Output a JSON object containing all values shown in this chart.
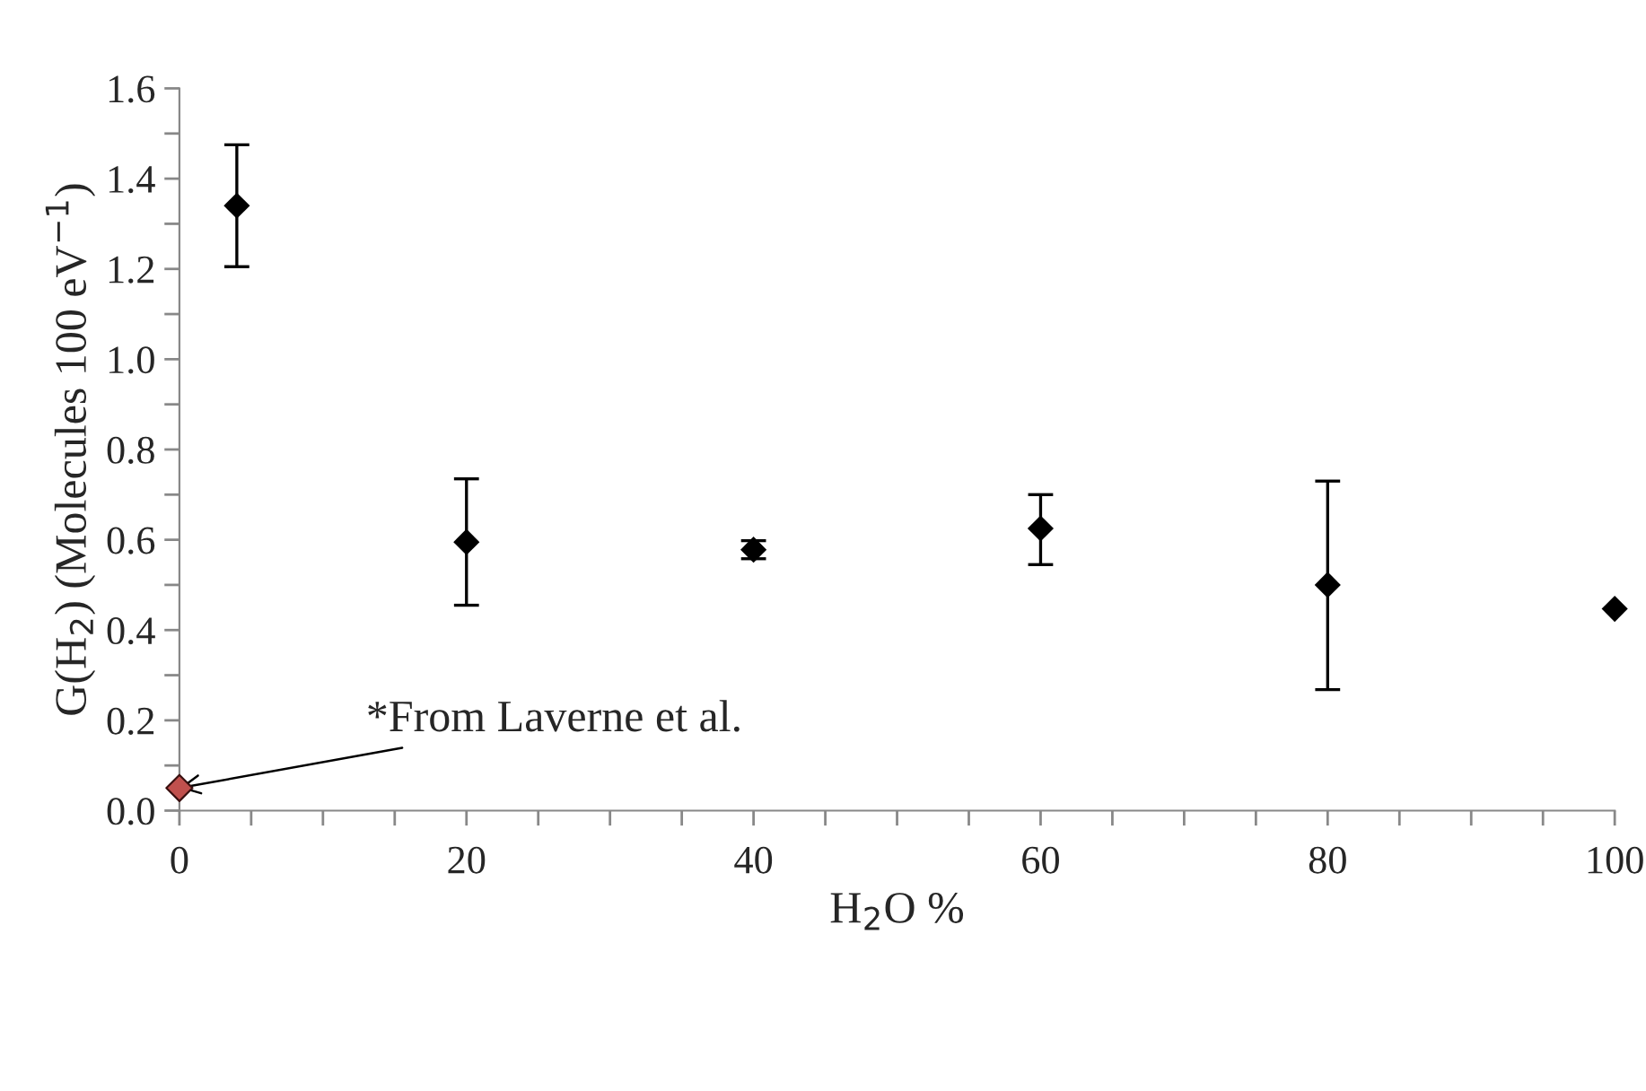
{
  "chart_data": {
    "type": "scatter",
    "xlabel": "H$_{2}$O %",
    "ylabel": "G(H$_{2}$) (Molecules 100 eV$^{−1}$)",
    "series": [
      {
        "color": "#000000",
        "x": [
          4,
          20,
          40,
          60,
          80,
          100
        ],
        "values": [
          1.34,
          0.595,
          0.578,
          0.625,
          0.5,
          0.447
        ],
        "errors": [
          [
            1.205,
            1.475
          ],
          [
            0.455,
            0.735
          ],
          [
            0.558,
            0.598
          ],
          [
            0.545,
            0.7
          ],
          [
            0.268,
            0.73
          ],
          null
        ]
      },
      {
        "color": "#c0504d",
        "x": [
          0
        ],
        "values": [
          0.05
        ]
      }
    ],
    "annotations": [
      {
        "text": "*From Laverne et al.",
        "x": 0,
        "y": 0.05
      }
    ],
    "marker": "diamond",
    "xlim": [
      0,
      100
    ],
    "ylim": [
      0,
      1.6
    ],
    "xticks": [
      0,
      {
        "value": 5,
        "label": null
      },
      {
        "value": 10,
        "label": null
      },
      {
        "value": 15,
        "label": null
      },
      20,
      {
        "value": 25,
        "label": null
      },
      {
        "value": 30,
        "label": null
      },
      {
        "value": 35,
        "label": null
      },
      40,
      {
        "value": 45,
        "label": null
      },
      {
        "value": 50,
        "label": null
      },
      {
        "value": 55,
        "label": null
      },
      60,
      {
        "value": 65,
        "label": null
      },
      {
        "value": 70,
        "label": null
      },
      {
        "value": 75,
        "label": null
      },
      80,
      {
        "value": 85,
        "label": null
      },
      {
        "value": 90,
        "label": null
      },
      {
        "value": 95,
        "label": null
      },
      100
    ],
    "yticks": [
      {
        "value": 0,
        "label": "0.0"
      },
      {
        "value": 0.1,
        "label": null
      },
      {
        "value": 0.2,
        "label": "0.2"
      },
      {
        "value": 0.3,
        "label": null
      },
      {
        "value": 0.4,
        "label": "0.4"
      },
      {
        "value": 0.5,
        "label": null
      },
      {
        "value": 0.6,
        "label": "0.6"
      },
      {
        "value": 0.7,
        "label": null
      },
      {
        "value": 0.8,
        "label": "0.8"
      },
      {
        "value": 0.9,
        "label": null
      },
      {
        "value": 1.0,
        "label": "1.0"
      },
      {
        "value": 1.1,
        "label": null
      },
      {
        "value": 1.2,
        "label": "1.2"
      },
      {
        "value": 1.3,
        "label": null
      },
      {
        "value": 1.4,
        "label": "1.4"
      },
      {
        "value": 1.5,
        "label": null
      },
      {
        "value": 1.6,
        "label": "1.6"
      }
    ],
    "grid": false,
    "legend": false
  }
}
